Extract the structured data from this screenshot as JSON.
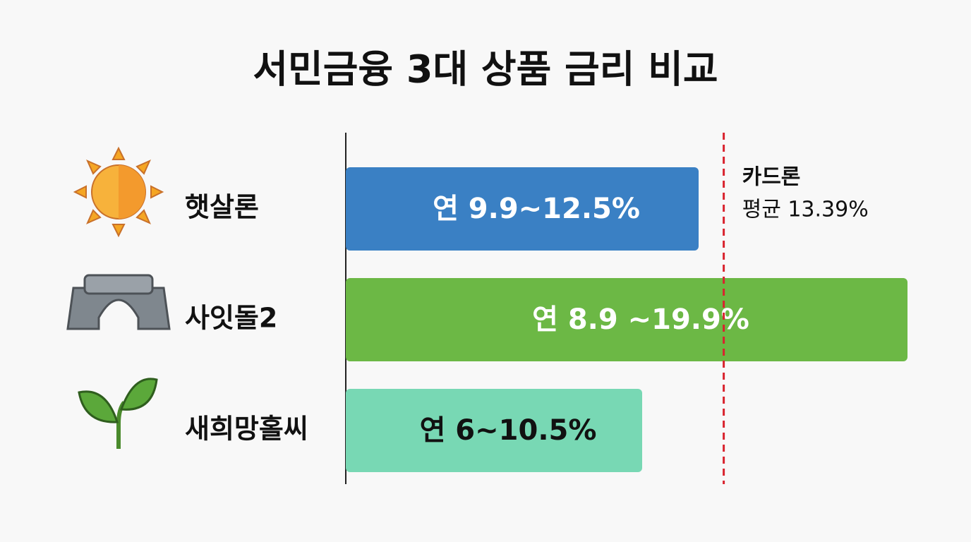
{
  "chart_data": {
    "type": "bar",
    "orientation": "horizontal",
    "title": "서민금융 3대 상품 금리 비교",
    "categories": [
      "햇살론",
      "사잇돌2",
      "새희망홀씨"
    ],
    "values": [
      12.5,
      19.9,
      10.5
    ],
    "value_labels": [
      "연 9.9~12.5%",
      "연 8.9 ~19.9%",
      "연 6~10.5%"
    ],
    "colors": [
      "#3a80c4",
      "#6cb845",
      "#78d8b4"
    ],
    "label_colors": [
      "#ffffff",
      "#ffffff",
      "#111111"
    ],
    "xlim": [
      0,
      20.5
    ],
    "reference": {
      "value": 13.39,
      "label": [
        "카드론",
        "평균 13.39%"
      ],
      "color": "#d9232e"
    }
  }
}
